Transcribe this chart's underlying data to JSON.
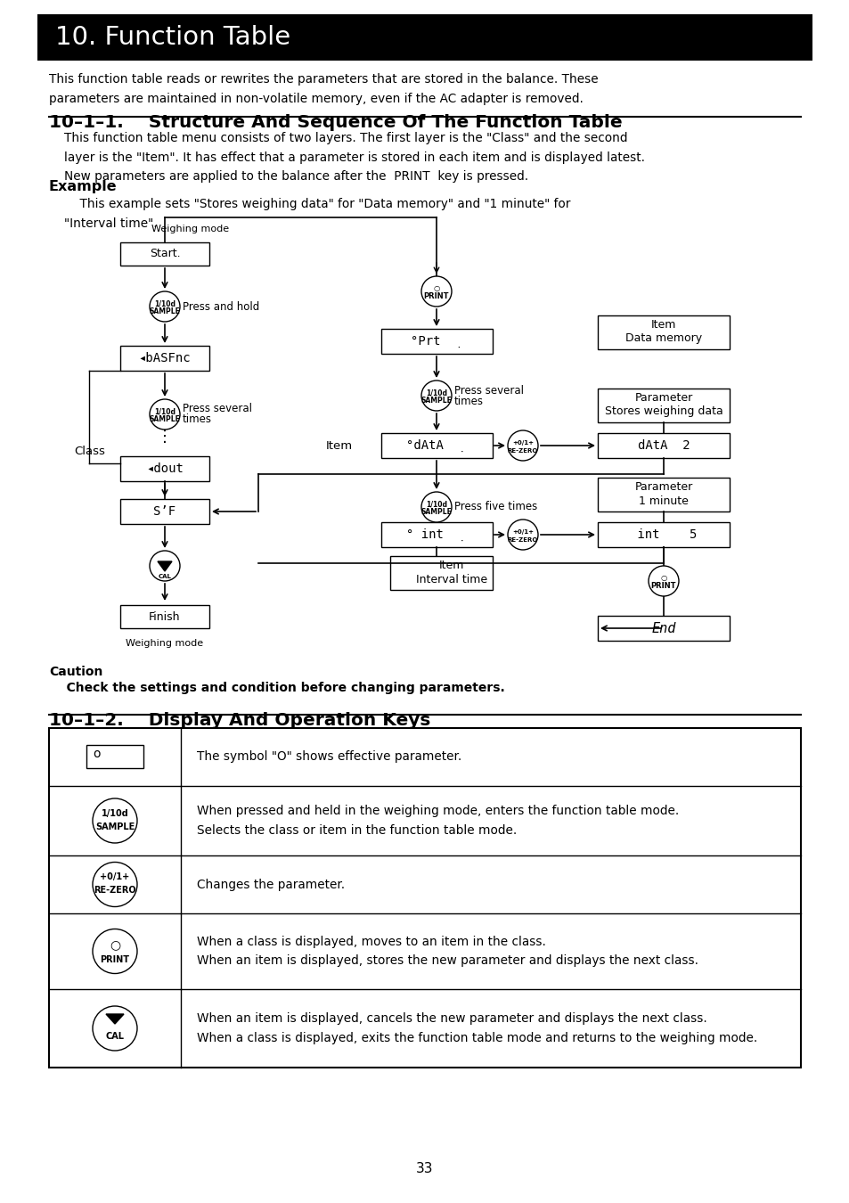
{
  "title": "10. Function Table",
  "title_bg": "#000000",
  "title_color": "#ffffff",
  "body_bg": "#ffffff",
  "text_color": "#000000",
  "page_number": "33",
  "intro_text": "This function table reads or rewrites the parameters that are stored in the balance. These\nparameters are maintained in non-volatile memory, even if the AC adapter is removed.",
  "section1_title": "10–1–1.    Structure And Sequence Of The Function Table",
  "section1_body": "This function table menu consists of two layers. The first layer is the \"Class\" and the second\nlayer is the \"Item\". It has effect that a parameter is stored in each item and is displayed latest.\nNew parameters are applied to the balance after the  PRINT  key is pressed.",
  "example_title": "Example",
  "example_body": "    This example sets \"Stores weighing data\" for \"Data memory\" and \"1 minute\" for\n\"Interval time\".",
  "section2_title": "10–1–2.    Display And Operation Keys",
  "caution_label": "Caution",
  "caution_text": "    Check the settings and condition before changing parameters.",
  "table_rows": [
    {
      "symbol": "o_rect",
      "desc": "The symbol \"O\" shows effective parameter."
    },
    {
      "symbol": "sample_btn",
      "desc": "When pressed and held in the weighing mode, enters the function table mode.\nSelects the class or item in the function table mode."
    },
    {
      "symbol": "rezero_btn",
      "desc": "Changes the parameter."
    },
    {
      "symbol": "print_btn",
      "desc": "When a class is displayed, moves to an item in the class.\nWhen an item is displayed, stores the new parameter and displays the next class."
    },
    {
      "symbol": "cal_btn",
      "desc": "When an item is displayed, cancels the new parameter and displays the next class.\nWhen a class is displayed, exits the function table mode and returns to the weighing mode."
    }
  ]
}
